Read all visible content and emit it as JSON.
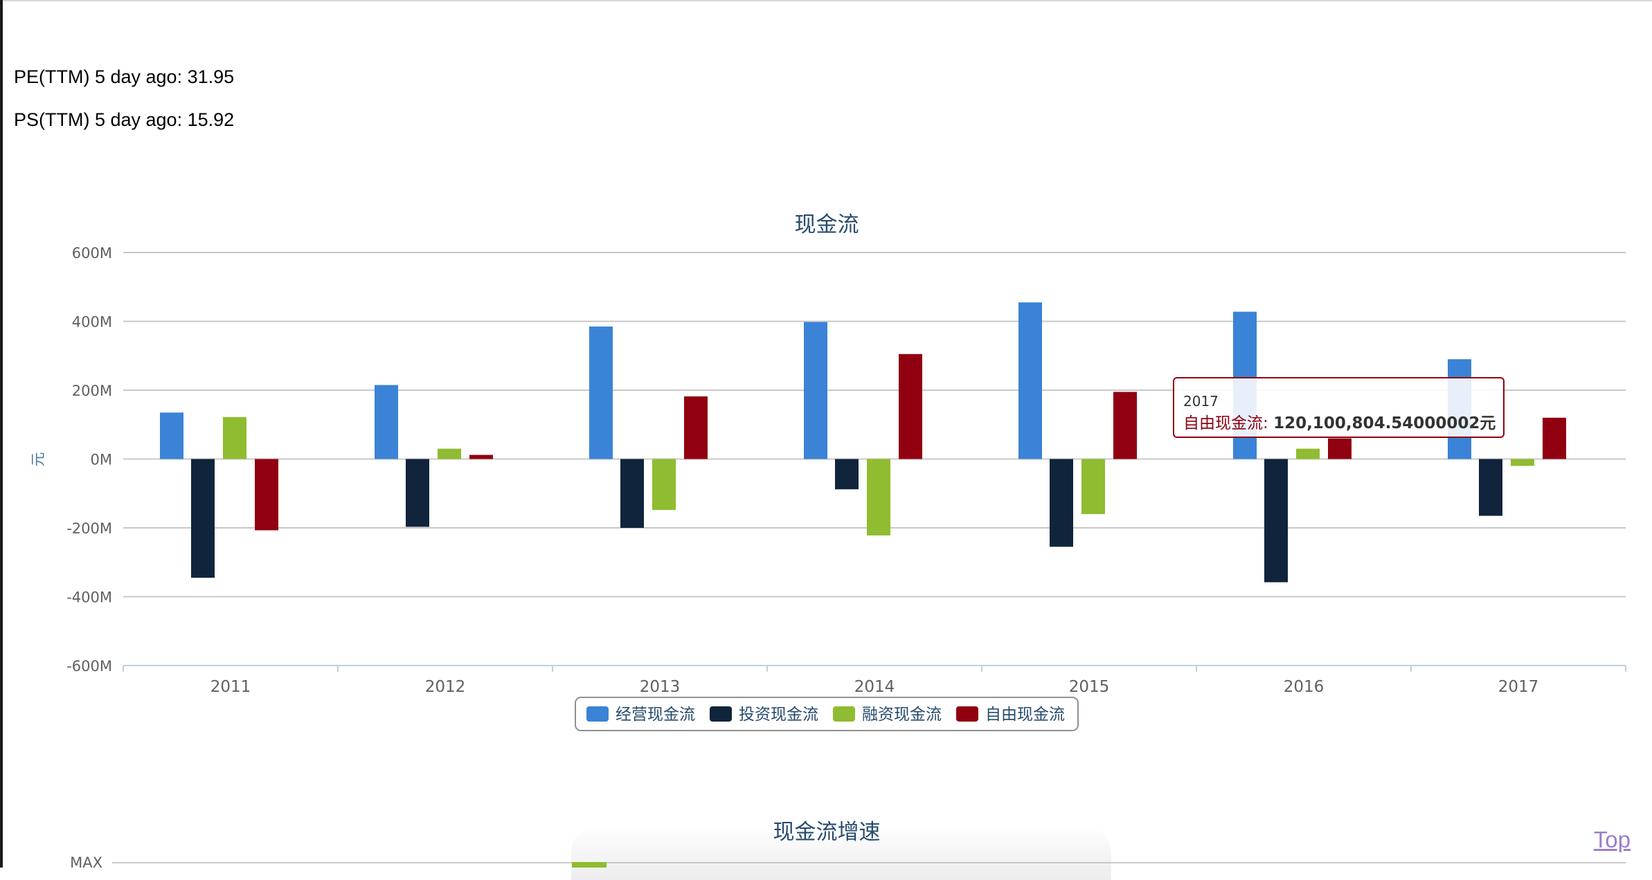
{
  "metrics": {
    "pe": "PE(TTM) 5 day ago: 31.95",
    "ps": "PS(TTM) 5 day ago: 15.92"
  },
  "top_link": "Top",
  "colors": {
    "operating": "#3a83d6",
    "investing": "#10243c",
    "financing": "#8fbc30",
    "free": "#900010",
    "grid": "#c8c8c8",
    "axis": "#c0d0e0"
  },
  "chart_data": [
    {
      "type": "bar",
      "title": "现金流",
      "ylabel": "元",
      "ylim": [
        -600,
        600
      ],
      "y_ticks": [
        "600M",
        "400M",
        "200M",
        "0M",
        "-200M",
        "-400M",
        "-600M"
      ],
      "categories": [
        "2011",
        "2012",
        "2013",
        "2014",
        "2015",
        "2016",
        "2017"
      ],
      "series": [
        {
          "name": "经营现金流",
          "values": [
            135,
            215,
            385,
            398,
            455,
            428,
            290
          ]
        },
        {
          "name": "投资现金流",
          "values": [
            -345,
            -197,
            -200,
            -88,
            -255,
            -358,
            -165
          ]
        },
        {
          "name": "融资现金流",
          "values": [
            122,
            30,
            -148,
            -222,
            -160,
            30,
            -20
          ]
        },
        {
          "name": "自由现金流",
          "values": [
            -207,
            12,
            182,
            305,
            195,
            60,
            120
          ]
        }
      ],
      "legend_position": "bottom-center",
      "grid": true,
      "tooltip": {
        "header": "2017",
        "series_name": "自由现金流",
        "value": "120,100,804.54000002元"
      }
    },
    {
      "type": "bar",
      "title": "现金流增速",
      "y_ticks": [
        "MAX"
      ]
    }
  ]
}
